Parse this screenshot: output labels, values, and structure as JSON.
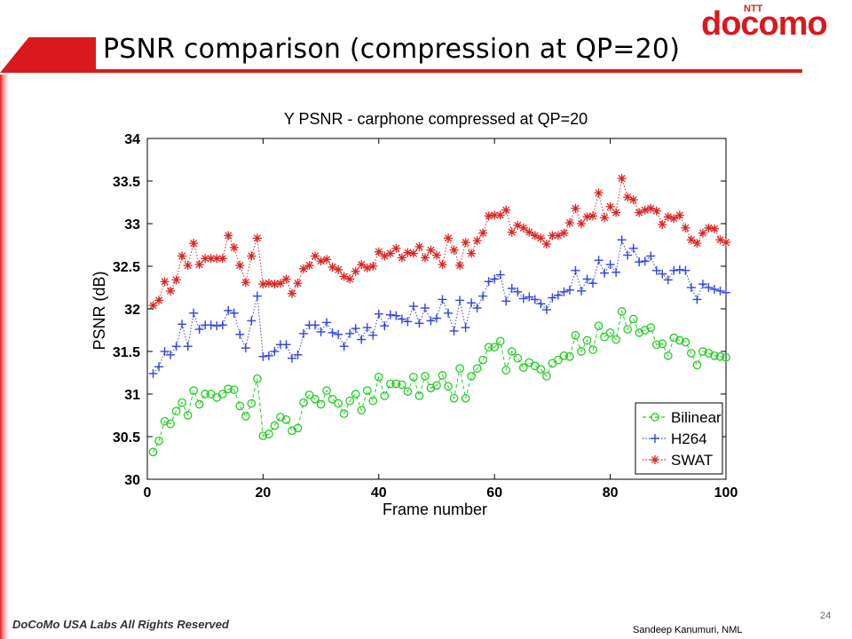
{
  "slide": {
    "title": "PSNR comparison (compression at QP=20)",
    "footer_left": "DoCoMo USA Labs All Rights Reserved",
    "footer_right": "Sandeep Kanumuri,  NML",
    "page_number": "24",
    "logo_small": "NTT",
    "logo_main": "docomo",
    "accent_color": "#d9191e"
  },
  "chart_data": {
    "type": "line",
    "title": "Y PSNR - carphone compressed at QP=20",
    "xlabel": "Frame number",
    "ylabel": "PSNR (dB)",
    "xlim": [
      0,
      100
    ],
    "ylim": [
      30,
      34
    ],
    "xticks": [
      0,
      20,
      40,
      60,
      80,
      100
    ],
    "yticks": [
      30,
      30.5,
      31,
      31.5,
      32,
      32.5,
      33,
      33.5,
      34
    ],
    "grid": false,
    "legend_position": "bottom-right",
    "x": [
      1,
      2,
      3,
      4,
      5,
      6,
      7,
      8,
      9,
      10,
      11,
      12,
      13,
      14,
      15,
      16,
      17,
      18,
      19,
      20,
      21,
      22,
      23,
      24,
      25,
      26,
      27,
      28,
      29,
      30,
      31,
      32,
      33,
      34,
      35,
      36,
      37,
      38,
      39,
      40,
      41,
      42,
      43,
      44,
      45,
      46,
      47,
      48,
      49,
      50,
      51,
      52,
      53,
      54,
      55,
      56,
      57,
      58,
      59,
      60,
      61,
      62,
      63,
      64,
      65,
      66,
      67,
      68,
      69,
      70,
      71,
      72,
      73,
      74,
      75,
      76,
      77,
      78,
      79,
      80,
      81,
      82,
      83,
      84,
      85,
      86,
      87,
      88,
      89,
      90,
      91,
      92,
      93,
      94,
      95,
      96,
      97,
      98,
      99,
      100
    ],
    "series": [
      {
        "name": "Bilinear",
        "color": "#22cc22",
        "marker": "circle",
        "line": "dashed",
        "values": [
          30.32,
          30.45,
          30.68,
          30.65,
          30.8,
          30.9,
          30.75,
          31.04,
          30.88,
          31.0,
          31.0,
          30.96,
          31.0,
          31.06,
          31.05,
          30.86,
          30.74,
          30.89,
          31.18,
          30.51,
          30.53,
          30.63,
          30.73,
          30.7,
          30.57,
          30.6,
          30.9,
          30.99,
          30.94,
          30.88,
          31.04,
          30.94,
          30.89,
          30.77,
          30.92,
          31.0,
          30.81,
          31.04,
          30.92,
          31.2,
          30.98,
          31.12,
          31.12,
          31.11,
          31.03,
          31.2,
          30.98,
          31.21,
          31.07,
          31.1,
          31.22,
          31.09,
          30.95,
          31.3,
          30.95,
          31.21,
          31.3,
          31.4,
          31.55,
          31.55,
          31.62,
          31.28,
          31.5,
          31.42,
          31.31,
          31.37,
          31.33,
          31.29,
          31.21,
          31.36,
          31.4,
          31.45,
          31.44,
          31.69,
          31.5,
          31.63,
          31.52,
          31.8,
          31.67,
          31.72,
          31.64,
          31.97,
          31.76,
          31.88,
          31.72,
          31.75,
          31.78,
          31.58,
          31.59,
          31.45,
          31.66,
          31.63,
          31.61,
          31.48,
          31.34,
          31.5,
          31.48,
          31.45,
          31.44,
          31.43
        ]
      },
      {
        "name": "H264",
        "color": "#3344dd",
        "marker": "plus",
        "line": "dotted",
        "values": [
          31.24,
          31.32,
          31.5,
          31.46,
          31.56,
          31.82,
          31.56,
          31.95,
          31.76,
          31.81,
          31.81,
          31.8,
          31.81,
          31.98,
          31.95,
          31.7,
          31.54,
          31.86,
          32.15,
          31.44,
          31.45,
          31.5,
          31.58,
          31.58,
          31.42,
          31.46,
          31.71,
          31.81,
          31.81,
          31.73,
          31.84,
          31.72,
          31.7,
          31.56,
          31.71,
          31.77,
          31.64,
          31.78,
          31.69,
          31.94,
          31.8,
          31.93,
          31.92,
          31.88,
          31.85,
          32.03,
          31.83,
          32.01,
          31.86,
          31.89,
          32.11,
          31.95,
          31.74,
          32.1,
          31.78,
          32.07,
          32.01,
          32.15,
          32.32,
          32.35,
          32.4,
          32.09,
          32.24,
          32.2,
          32.12,
          32.14,
          32.11,
          32.06,
          31.99,
          32.13,
          32.16,
          32.2,
          32.22,
          32.45,
          32.21,
          32.35,
          32.3,
          32.57,
          32.42,
          32.52,
          32.43,
          32.81,
          32.63,
          32.71,
          32.55,
          32.56,
          32.62,
          32.45,
          32.41,
          32.34,
          32.45,
          32.46,
          32.45,
          32.25,
          32.11,
          32.29,
          32.25,
          32.23,
          32.21,
          32.19
        ]
      },
      {
        "name": "SWAT",
        "color": "#dd2222",
        "marker": "star",
        "line": "dotted",
        "values": [
          32.04,
          32.1,
          32.32,
          32.21,
          32.34,
          32.62,
          32.51,
          32.77,
          32.52,
          32.59,
          32.59,
          32.59,
          32.59,
          32.86,
          32.72,
          32.51,
          32.31,
          32.62,
          32.83,
          32.29,
          32.3,
          32.29,
          32.3,
          32.35,
          32.18,
          32.3,
          32.47,
          32.51,
          32.62,
          32.56,
          32.58,
          32.49,
          32.46,
          32.38,
          32.35,
          32.44,
          32.52,
          32.48,
          32.5,
          32.67,
          32.62,
          32.65,
          32.71,
          32.6,
          32.66,
          32.65,
          32.73,
          32.6,
          32.69,
          32.63,
          32.52,
          32.83,
          32.69,
          32.51,
          32.78,
          32.65,
          32.8,
          32.89,
          33.09,
          33.1,
          33.1,
          33.16,
          32.9,
          32.98,
          32.95,
          32.9,
          32.86,
          32.83,
          32.76,
          32.86,
          32.86,
          32.89,
          33.01,
          33.18,
          33.0,
          33.08,
          33.09,
          33.36,
          33.07,
          33.2,
          33.13,
          33.53,
          33.31,
          33.28,
          33.13,
          33.16,
          33.18,
          33.15,
          32.99,
          33.08,
          33.06,
          33.1,
          32.95,
          32.81,
          32.77,
          32.89,
          32.95,
          32.94,
          32.81,
          32.78
        ]
      }
    ]
  }
}
